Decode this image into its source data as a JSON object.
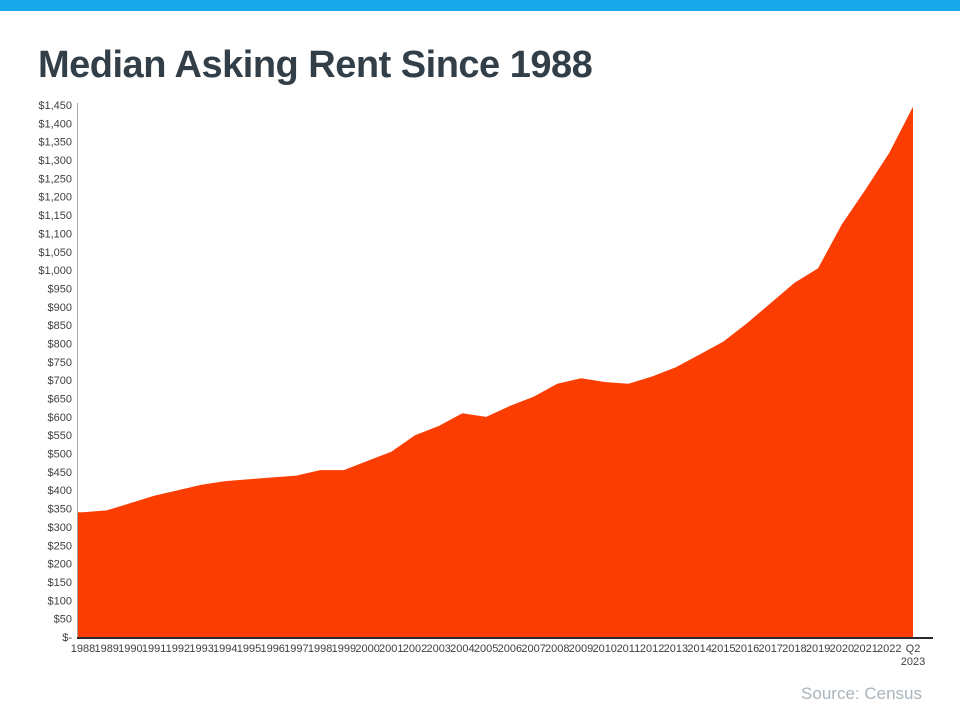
{
  "page": {
    "title": "Median Asking Rent Since 1988",
    "source": "Source: Census",
    "colors": {
      "accent_bar": "#17A8EC",
      "area_fill": "#FB3D01",
      "title_text": "#333F48",
      "axis_text": "#404040",
      "axis_line": "#2B2B2B",
      "y_axis_line": "#A6A6A6",
      "source_text": "#A9B4BC"
    }
  },
  "chart_data": {
    "type": "area",
    "title": "Median Asking Rent Since 1988",
    "xlabel": "",
    "ylabel": "",
    "ylim": [
      0,
      1450
    ],
    "y_tick_step": 50,
    "grid": false,
    "legend": false,
    "fill_color": "#FB3D01",
    "categories": [
      "1988",
      "1989",
      "1990",
      "1991",
      "1992",
      "1993",
      "1994",
      "1995",
      "1996",
      "1997",
      "1998",
      "1999",
      "2000",
      "2001",
      "2002",
      "2003",
      "2004",
      "2005",
      "2006",
      "2007",
      "2008",
      "2009",
      "2010",
      "2011",
      "2012",
      "2013",
      "2014",
      "2015",
      "2016",
      "2017",
      "2018",
      "2019",
      "2020",
      "2021",
      "2022",
      "Q2 2023"
    ],
    "values": [
      340,
      345,
      365,
      385,
      400,
      415,
      425,
      430,
      435,
      440,
      455,
      455,
      480,
      505,
      550,
      575,
      610,
      600,
      630,
      655,
      690,
      705,
      695,
      690,
      710,
      735,
      770,
      805,
      855,
      910,
      965,
      1005,
      1125,
      1220,
      1320,
      1445
    ],
    "y_tick_labels": [
      "$-",
      "$50",
      "$100",
      "$150",
      "$200",
      "$250",
      "$300",
      "$350",
      "$400",
      "$450",
      "$500",
      "$550",
      "$600",
      "$650",
      "$700",
      "$750",
      "$800",
      "$850",
      "$900",
      "$950",
      "$1,000",
      "$1,050",
      "$1,100",
      "$1,150",
      "$1,200",
      "$1,250",
      "$1,300",
      "$1,350",
      "$1,400",
      "$1,450"
    ]
  }
}
